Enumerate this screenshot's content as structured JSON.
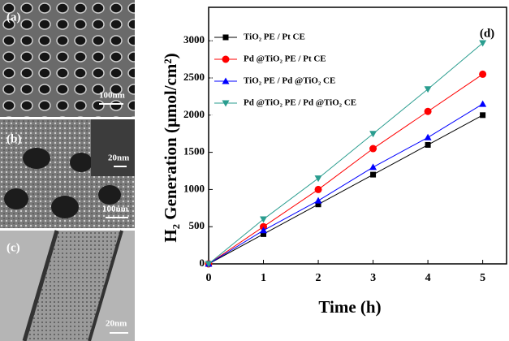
{
  "panels": {
    "a": {
      "label": "(a)",
      "scale": "100nm"
    },
    "b": {
      "label": "(b)",
      "inset_scale": "20nm",
      "scale": "100nm"
    },
    "c": {
      "label": "(c)",
      "scale": "20nm"
    }
  },
  "chart_data": {
    "type": "line",
    "annotation": "(d)",
    "x_label": "Time (h)",
    "y_label": "H₂ Generation (μmol/cm²)",
    "x": [
      0,
      1,
      2,
      3,
      4,
      5
    ],
    "xlim": [
      0,
      5.45
    ],
    "xticks": [
      0,
      1,
      2,
      3,
      4,
      5
    ],
    "ylim": [
      0,
      3450
    ],
    "yticks": [
      0,
      500,
      1000,
      1500,
      2000,
      2500,
      3000
    ],
    "series": [
      {
        "name": "TiO₂ PE / Pt CE",
        "color": "#000000",
        "marker": "square",
        "values": [
          0,
          400,
          800,
          1200,
          1600,
          2000
        ]
      },
      {
        "name": "Pd @TiO₂ PE / Pt CE",
        "color": "#ff0000",
        "marker": "circle",
        "values": [
          0,
          500,
          1000,
          1550,
          2050,
          2550
        ]
      },
      {
        "name": "TiO₂ PE / Pd @TiO₂ CE",
        "color": "#0000ff",
        "marker": "triangle-up",
        "values": [
          0,
          450,
          850,
          1300,
          1700,
          2150
        ]
      },
      {
        "name": "Pd @TiO₂ PE / Pd @TiO₂ CE",
        "color": "#2a9d8f",
        "marker": "triangle-down",
        "values": [
          0,
          600,
          1150,
          1750,
          2350,
          2970
        ]
      }
    ]
  }
}
